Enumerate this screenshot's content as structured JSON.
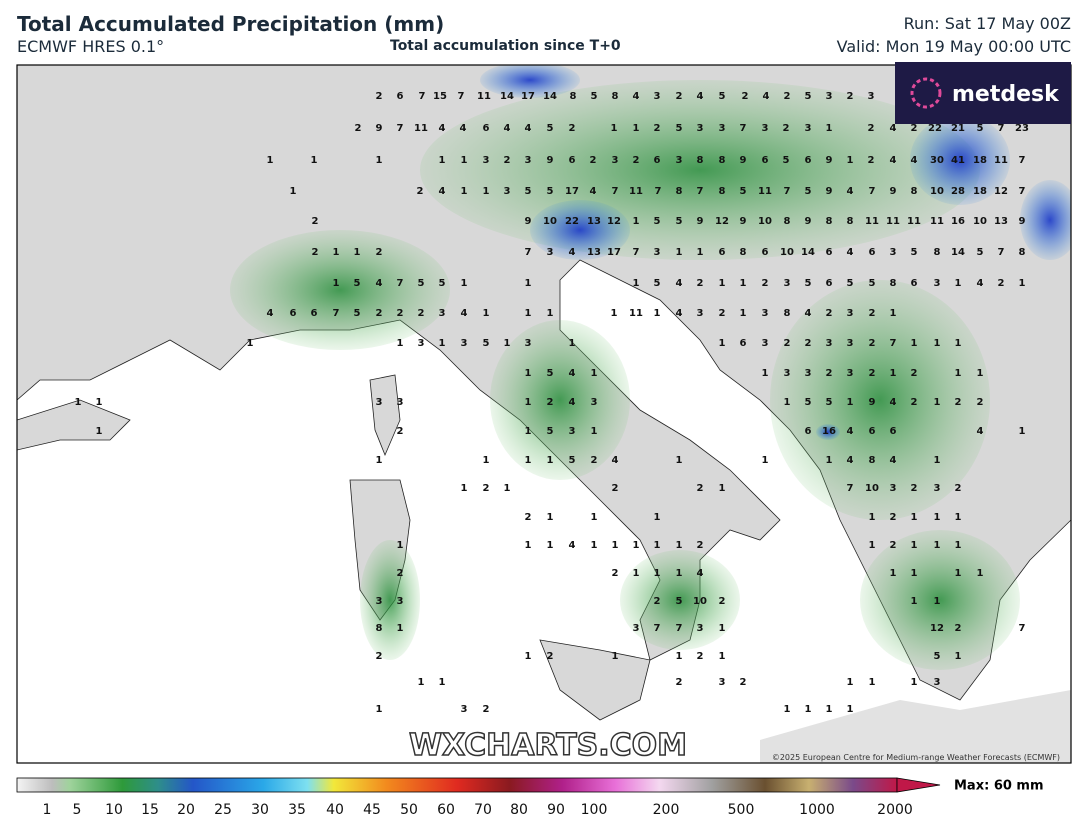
{
  "header": {
    "title": "Total Accumulated Precipitation (mm)",
    "model": "ECMWF HRES 0.1°",
    "subtitle": "Total accumulation since T+0",
    "run": "Run: Sat 17 May 00Z",
    "valid": "Valid: Mon 19 May 00:00 UTC",
    "logo": "metdesk"
  },
  "map": {
    "watermark": "WXCHARTS.COM",
    "copyright": "©2025 European Centre for Medium-range Weather Forecasts (ECMWF)",
    "rows": [
      [
        2,
        6,
        7,
        15,
        7,
        11,
        14,
        17,
        14,
        8,
        5,
        8,
        4,
        3,
        2,
        4,
        5,
        2,
        4,
        2,
        5,
        3,
        2,
        3
      ],
      [
        2,
        9,
        7,
        11,
        4,
        4,
        6,
        4,
        4,
        5,
        2,
        1,
        1,
        2,
        5,
        3,
        3,
        7,
        3,
        2,
        3,
        1,
        2,
        4,
        2,
        22,
        21,
        5,
        7,
        23
      ],
      [
        1,
        1,
        1,
        1,
        1,
        3,
        2,
        3,
        9,
        6,
        2,
        3,
        2,
        6,
        3,
        8,
        8,
        9,
        6,
        5,
        6,
        9,
        1,
        2,
        4,
        4,
        30,
        41,
        18,
        11,
        7
      ],
      [
        1,
        2,
        4,
        1,
        1,
        3,
        5,
        5,
        17,
        4,
        7,
        11,
        7,
        8,
        7,
        8,
        5,
        11,
        7,
        5,
        9,
        4,
        7,
        9,
        8,
        10,
        28,
        18,
        12,
        7
      ],
      [
        2,
        9,
        10,
        22,
        13,
        12,
        1,
        5,
        5,
        9,
        12,
        9,
        10,
        8,
        9,
        8,
        8,
        11,
        11,
        11,
        11,
        16,
        10,
        13,
        9
      ],
      [
        2,
        1,
        1,
        2,
        7,
        3,
        4,
        13,
        17,
        7,
        3,
        1,
        1,
        6,
        8,
        6,
        10,
        14,
        6,
        4,
        6,
        3,
        5,
        8,
        14,
        5,
        7,
        8
      ],
      [
        1,
        5,
        4,
        7,
        5,
        5,
        1,
        1,
        1,
        5,
        4,
        2,
        1,
        1,
        2,
        3,
        5,
        6,
        5,
        5,
        8,
        6,
        3,
        1,
        4,
        2,
        1
      ],
      [
        4,
        6,
        6,
        7,
        5,
        2,
        2,
        2,
        3,
        4,
        1,
        1,
        1,
        1,
        11,
        1,
        4,
        3,
        2,
        1,
        3,
        8,
        4,
        2,
        3,
        2,
        1
      ],
      [
        1,
        1,
        3,
        1,
        3,
        5,
        1,
        3,
        1,
        1,
        6,
        3,
        2,
        2,
        3,
        3,
        2,
        7,
        1,
        1,
        1
      ],
      [
        1,
        5,
        4,
        1,
        1,
        3,
        3,
        2,
        3,
        2,
        1,
        2,
        1,
        1
      ],
      [
        1,
        1,
        3,
        3,
        1,
        2,
        4,
        3,
        1,
        5,
        5,
        1,
        9,
        4,
        2,
        1,
        2,
        2
      ],
      [
        1,
        2,
        1,
        5,
        3,
        1,
        6,
        16,
        4,
        6,
        6,
        4,
        1
      ],
      [
        1,
        1,
        1,
        1,
        5,
        2,
        4,
        1,
        1,
        1,
        4,
        8,
        4,
        1
      ],
      [
        1,
        2,
        1,
        2,
        2,
        1,
        7,
        10,
        3,
        2,
        3,
        2
      ],
      [
        2,
        1,
        1,
        1,
        1,
        2,
        1,
        1,
        1
      ],
      [
        1,
        1,
        1,
        4,
        1,
        1,
        1,
        1,
        1,
        2,
        1,
        2,
        1,
        1,
        1
      ],
      [
        2,
        2,
        1,
        1,
        1,
        4,
        1,
        1,
        1,
        1
      ],
      [
        3,
        3,
        2,
        5,
        10,
        2,
        1,
        1
      ],
      [
        8,
        1,
        3,
        7,
        7,
        3,
        1,
        12,
        2,
        7
      ],
      [
        2,
        1,
        2,
        1,
        1,
        2,
        1,
        5,
        1
      ],
      [
        1,
        1,
        2,
        3,
        2,
        1,
        1,
        1,
        3
      ],
      [
        1,
        3,
        2,
        1,
        1,
        1,
        1
      ]
    ]
  },
  "colorbar": {
    "labels": [
      1,
      5,
      10,
      15,
      20,
      25,
      30,
      35,
      40,
      45,
      50,
      60,
      70,
      80,
      90,
      100,
      200,
      500,
      1000,
      2000
    ],
    "max_label": "Max: 60 mm"
  }
}
